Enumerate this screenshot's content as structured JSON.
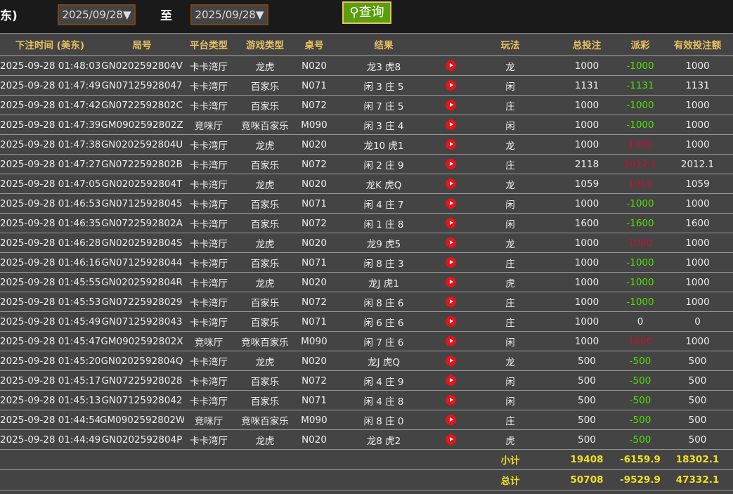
{
  "filter": {
    "left_label": "东)",
    "from": "2025/09/28▼",
    "to_label": "至",
    "to": "2025/09/28▼",
    "query": "查询"
  },
  "headers": [
    "下注时间 (美东)",
    "局号",
    "平台类型",
    "游戏类型",
    "桌号",
    "结果",
    "",
    "玩法",
    "总投注",
    "派彩",
    "有效投注额"
  ],
  "rows": [
    [
      "2025-09-28 01:48:03",
      "GN0202592804V",
      "卡卡湾厅",
      "龙虎",
      "N020",
      "龙3 虎8",
      "龙",
      "1000",
      "-1000",
      "1000"
    ],
    [
      "2025-09-28 01:47:49",
      "GN07125928047",
      "卡卡湾厅",
      "百家乐",
      "N071",
      "闲 3 庄 5",
      "闲",
      "1131",
      "-1131",
      "1131"
    ],
    [
      "2025-09-28 01:47:42",
      "GN0722592802C",
      "卡卡湾厅",
      "百家乐",
      "N072",
      "闲 7 庄 5",
      "庄",
      "1000",
      "-1000",
      "1000"
    ],
    [
      "2025-09-28 01:47:39",
      "GM0902592802Z",
      "竞咪厅",
      "竞咪百家乐",
      "M090",
      "闲 3 庄 4",
      "闲",
      "1000",
      "-1000",
      "1000"
    ],
    [
      "2025-09-28 01:47:38",
      "GN0202592804U",
      "卡卡湾厅",
      "龙虎",
      "N020",
      "龙10 虎1",
      "龙",
      "1000",
      "1000",
      "1000"
    ],
    [
      "2025-09-28 01:47:27",
      "GN0722592802B",
      "卡卡湾厅",
      "百家乐",
      "N072",
      "闲 2 庄 9",
      "庄",
      "2118",
      "2012.1",
      "2012.1"
    ],
    [
      "2025-09-28 01:47:05",
      "GN0202592804T",
      "卡卡湾厅",
      "龙虎",
      "N020",
      "龙K 虎Q",
      "龙",
      "1059",
      "1059",
      "1059"
    ],
    [
      "2025-09-28 01:46:53",
      "GN07125928045",
      "卡卡湾厅",
      "百家乐",
      "N071",
      "闲 4 庄 7",
      "闲",
      "1000",
      "-1000",
      "1000"
    ],
    [
      "2025-09-28 01:46:35",
      "GN0722592802A",
      "卡卡湾厅",
      "百家乐",
      "N072",
      "闲 1 庄 8",
      "闲",
      "1600",
      "-1600",
      "1600"
    ],
    [
      "2025-09-28 01:46:28",
      "GN0202592804S",
      "卡卡湾厅",
      "龙虎",
      "N020",
      "龙9 虎5",
      "龙",
      "1000",
      "1000",
      "1000"
    ],
    [
      "2025-09-28 01:46:16",
      "GN07125928044",
      "卡卡湾厅",
      "百家乐",
      "N071",
      "闲 8 庄 3",
      "庄",
      "1000",
      "-1000",
      "1000"
    ],
    [
      "2025-09-28 01:45:55",
      "GN0202592804R",
      "卡卡湾厅",
      "龙虎",
      "N020",
      "龙J 虎1",
      "虎",
      "1000",
      "-1000",
      "1000"
    ],
    [
      "2025-09-28 01:45:53",
      "GN07225928029",
      "卡卡湾厅",
      "百家乐",
      "N072",
      "闲 8 庄 6",
      "庄",
      "1000",
      "-1000",
      "1000"
    ],
    [
      "2025-09-28 01:45:49",
      "GN07125928043",
      "卡卡湾厅",
      "百家乐",
      "N071",
      "闲 6 庄 6",
      "庄",
      "1000",
      "0",
      "0"
    ],
    [
      "2025-09-28 01:45:47",
      "GM0902592802X",
      "竞咪厅",
      "竞咪百家乐",
      "M090",
      "闲 7 庄 6",
      "闲",
      "1000",
      "1000",
      "1000"
    ],
    [
      "2025-09-28 01:45:20",
      "GN0202592804Q",
      "卡卡湾厅",
      "龙虎",
      "N020",
      "龙J 虎Q",
      "龙",
      "500",
      "-500",
      "500"
    ],
    [
      "2025-09-28 01:45:17",
      "GN07225928028",
      "卡卡湾厅",
      "百家乐",
      "N072",
      "闲 4 庄 9",
      "闲",
      "500",
      "-500",
      "500"
    ],
    [
      "2025-09-28 01:45:13",
      "GN07125928042",
      "卡卡湾厅",
      "百家乐",
      "N071",
      "闲 4 庄 8",
      "闲",
      "500",
      "-500",
      "500"
    ],
    [
      "2025-09-28 01:44:54",
      "GM0902592802W",
      "竞咪厅",
      "竞咪百家乐",
      "M090",
      "闲 8 庄 0",
      "庄",
      "500",
      "-500",
      "500"
    ],
    [
      "2025-09-28 01:44:49",
      "GN0202592804P",
      "卡卡湾厅",
      "龙虎",
      "N020",
      "龙8 虎2",
      "虎",
      "500",
      "-500",
      "500"
    ]
  ],
  "subtotal": {
    "label": "小计",
    "bet": "19408",
    "payout": "-6159.9",
    "valid": "18302.1"
  },
  "total": {
    "label": "总计",
    "bet": "50708",
    "payout": "-9529.9",
    "valid": "47332.1"
  },
  "colors": {
    "negative": "#4fe000",
    "positive": "#c0103a",
    "header": "#e8c060",
    "summary": "#f0e020"
  }
}
